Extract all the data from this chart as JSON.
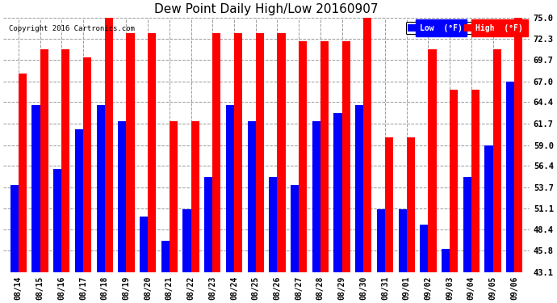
{
  "title": "Dew Point Daily High/Low 20160907",
  "copyright": "Copyright 2016 Cartronics.com",
  "dates": [
    "08/14",
    "08/15",
    "08/16",
    "08/17",
    "08/18",
    "08/19",
    "08/20",
    "08/21",
    "08/22",
    "08/23",
    "08/24",
    "08/25",
    "08/26",
    "08/27",
    "08/28",
    "08/29",
    "08/30",
    "08/31",
    "09/01",
    "09/02",
    "09/03",
    "09/04",
    "09/05",
    "09/06"
  ],
  "low_values": [
    54,
    64,
    56,
    61,
    64,
    62,
    50,
    47,
    51,
    55,
    64,
    62,
    55,
    54,
    62,
    63,
    64,
    51,
    51,
    49,
    46,
    55,
    59,
    67
  ],
  "high_values": [
    68,
    71,
    71,
    70,
    75,
    73,
    73,
    62,
    62,
    73,
    73,
    73,
    73,
    72,
    72,
    72,
    75,
    60,
    60,
    71,
    66,
    66,
    71,
    75
  ],
  "low_color": "#0000ff",
  "high_color": "#ff0000",
  "bg_color": "#ffffff",
  "plot_bg_color": "#ffffff",
  "grid_color": "#999999",
  "ymin": 43.1,
  "ymax": 75.0,
  "yticks": [
    43.1,
    45.8,
    48.4,
    51.1,
    53.7,
    56.4,
    59.0,
    61.7,
    64.4,
    67.0,
    69.7,
    72.3,
    75.0
  ],
  "bar_width": 0.38,
  "legend_low_label": "Low  (°F)",
  "legend_high_label": "High  (°F)"
}
